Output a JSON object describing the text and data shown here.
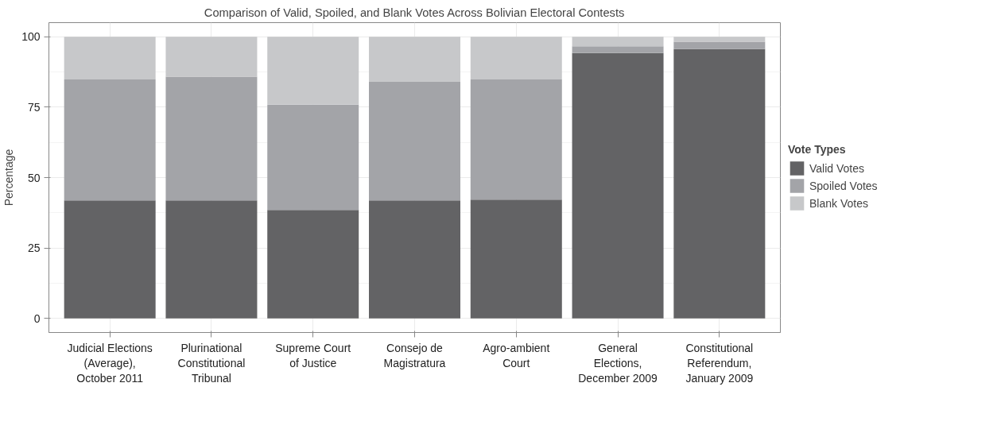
{
  "chart_data": {
    "type": "bar",
    "stacked": true,
    "title": "Comparison of Valid, Spoiled, and Blank Votes Across Bolivian Electoral Contests",
    "ylabel": "Percentage",
    "legend_title": "Vote Types",
    "legend": "right",
    "grid": true,
    "categories": [
      "Judicial Elections\n(Average),\nOctober 2011",
      "Plurinational\nConstitutional\nTribunal",
      "Supreme Court\nof Justice",
      "Consejo de\nMagistratura",
      "Agro-ambient\nCourt",
      "General\nElections,\nDecember 2009",
      "Constitutional\nReferendum,\nJanuary 2009"
    ],
    "ylim": [
      -5,
      105
    ],
    "yticks": [
      0,
      25,
      50,
      75,
      100
    ],
    "series": [
      {
        "name": "Valid Votes",
        "color": "#636365",
        "values": [
          41.9,
          41.9,
          38.5,
          41.9,
          42.2,
          94.2,
          95.6
        ]
      },
      {
        "name": "Spoiled Votes",
        "color": "#a3a4a8",
        "values": [
          42.9,
          43.9,
          37.4,
          42.1,
          42.6,
          2.4,
          2.6
        ]
      },
      {
        "name": "Blank Votes",
        "color": "#c7c8ca",
        "values": [
          15.2,
          14.2,
          24.1,
          16.0,
          15.2,
          3.4,
          1.8
        ]
      }
    ]
  }
}
